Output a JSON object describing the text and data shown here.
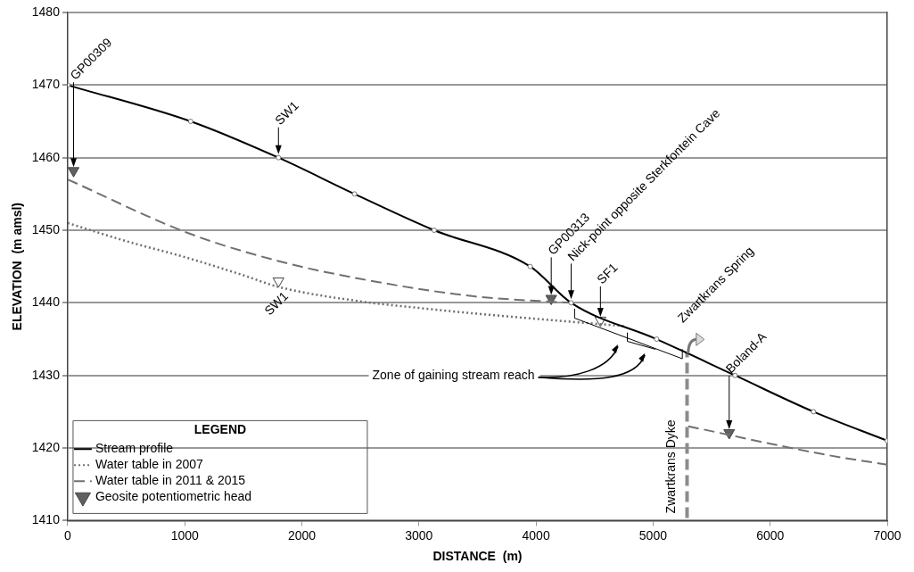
{
  "chart_data": {
    "type": "line",
    "xlabel": "DISTANCE  (m)",
    "ylabel": "ELEVATION  (m amsl)",
    "legend_title": "LEGEND",
    "legend": "bottom left",
    "grid": "y",
    "xlim": [
      0,
      7000
    ],
    "xticks": [
      0,
      1000,
      2000,
      3000,
      4000,
      5000,
      6000,
      7000
    ],
    "ylim": [
      1410,
      1480
    ],
    "yticks": [
      1410,
      1420,
      1430,
      1440,
      1450,
      1460,
      1470,
      1480
    ],
    "series": [
      {
        "name": "Stream profile",
        "type": "line",
        "color": "#000000",
        "line_style": "solid",
        "marker": "circle",
        "x": [
          0,
          1050,
          1800,
          2450,
          3130,
          3950,
          4300,
          5030,
          5700,
          6370,
          7000
        ],
        "values": [
          1470,
          1465,
          1460,
          1455,
          1450,
          1445,
          1440,
          1435,
          1430,
          1425,
          1421
        ]
      },
      {
        "name": "Water table in 2007",
        "type": "line",
        "color": "#707070",
        "line_style": "dotted",
        "marker": "none",
        "x": [
          0,
          500,
          1000,
          1500,
          1800,
          2500,
          3000,
          3500,
          4000,
          4750
        ],
        "values": [
          1451,
          1448.5,
          1446.3,
          1443.8,
          1442.2,
          1440.2,
          1439.3,
          1438.5,
          1437.8,
          1436.8
        ]
      },
      {
        "name": "Water table in 2011 & 2015",
        "type": "line",
        "color": "#707070",
        "line_style": "dashed",
        "marker": "none",
        "x": [
          0,
          1030,
          1790,
          2500,
          3470,
          4300,
          4800,
          5300,
          5650,
          6000,
          6500,
          7000
        ],
        "values": [
          1457,
          1449.6,
          1445.8,
          1443.3,
          1440.9,
          1440,
          null,
          1423,
          1421.8,
          1420.6,
          1419,
          1417.7
        ]
      },
      {
        "name": "Geosite potentiometric head",
        "type": "scatter",
        "color": "#606060",
        "marker": "triangle",
        "x": [
          50,
          4130,
          5650
        ],
        "values": [
          1458.2,
          1440.6,
          1422.1
        ]
      },
      {
        "type": "scatter",
        "color": "#ffffff",
        "marker": "triangle",
        "x": [
          1800,
          4550
        ],
        "values": [
          1443,
          1437.6
        ]
      }
    ],
    "ref_lines": [
      {
        "axis": "x",
        "value": 5290,
        "label": "Zwartkrans Dyke",
        "color": "#8c8c8c",
        "line_style": "dashed"
      }
    ],
    "annotations": [
      "GP00309",
      {
        "text": "SW1",
        "x": 1800,
        "y": 1460
      },
      {
        "text": "SW1",
        "x": 1800,
        "y": 1443
      },
      {
        "text": "GP00313",
        "x": 4130,
        "y": 1441.1
      },
      "Nick-point opposite Sterkfontein Cave",
      {
        "text": "SF1",
        "x": 4550,
        "y": 1437.6
      },
      {
        "text": "Zwartkrans Spring",
        "x": 5300,
        "y": 1433
      },
      "Boland-A",
      "Zone of gaining stream reach"
    ]
  }
}
